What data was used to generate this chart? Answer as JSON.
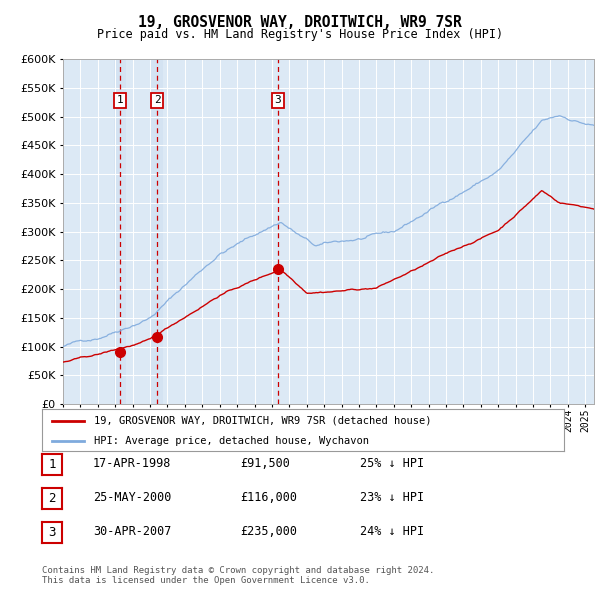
{
  "title": "19, GROSVENOR WAY, DROITWICH, WR9 7SR",
  "subtitle": "Price paid vs. HM Land Registry's House Price Index (HPI)",
  "background_color": "#dce9f5",
  "plot_bg_color": "#dce9f5",
  "grid_color": "#ffffff",
  "hpi_line_color": "#7faadd",
  "price_line_color": "#cc0000",
  "sale_marker_color": "#cc0000",
  "vline_color": "#cc0000",
  "sale_dates": [
    1998.29,
    2000.4,
    2007.33
  ],
  "sale_prices": [
    91500,
    116000,
    235000
  ],
  "sale_labels": [
    "1",
    "2",
    "3"
  ],
  "ylim": [
    0,
    600000
  ],
  "yticks": [
    0,
    50000,
    100000,
    150000,
    200000,
    250000,
    300000,
    350000,
    400000,
    450000,
    500000,
    550000,
    600000
  ],
  "xlim_start": 1995.0,
  "xlim_end": 2025.5,
  "legend_entries": [
    "19, GROSVENOR WAY, DROITWICH, WR9 7SR (detached house)",
    "HPI: Average price, detached house, Wychavon"
  ],
  "table_rows": [
    {
      "num": "1",
      "date": "17-APR-1998",
      "price": "£91,500",
      "hpi": "25% ↓ HPI"
    },
    {
      "num": "2",
      "date": "25-MAY-2000",
      "price": "£116,000",
      "hpi": "23% ↓ HPI"
    },
    {
      "num": "3",
      "date": "30-APR-2007",
      "price": "£235,000",
      "hpi": "24% ↓ HPI"
    }
  ],
  "footnote": "Contains HM Land Registry data © Crown copyright and database right 2024.\nThis data is licensed under the Open Government Licence v3.0."
}
